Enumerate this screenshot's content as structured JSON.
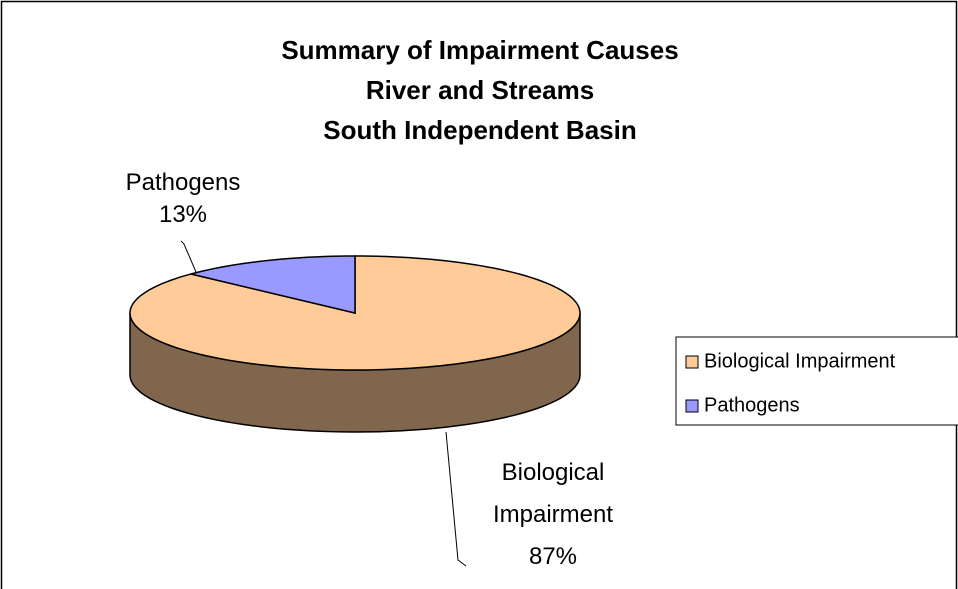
{
  "chart_data": {
    "type": "pie3d",
    "title": [
      "Summary of Impairment Causes",
      "River and Streams",
      "South Independent Basin"
    ],
    "categories": [
      "Biological Impairment",
      "Pathogens"
    ],
    "values": [
      87,
      13
    ],
    "value_labels": [
      "87%",
      "13%"
    ],
    "colors": [
      "#FFCC99",
      "#9999FF"
    ],
    "legend": "right"
  }
}
